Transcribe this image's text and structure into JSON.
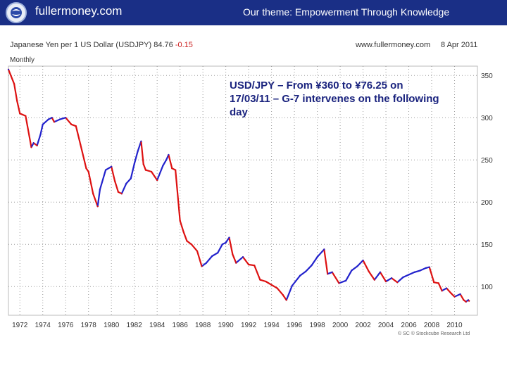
{
  "header": {
    "brand": "fullermoney.com",
    "theme": "Our theme: Empowerment Through Knowledge",
    "logo_icon": "globe-logo-icon",
    "bar_color": "#1a2f86"
  },
  "chart_header": {
    "title_prefix": "Japanese Yen per 1 US Dollar (USDJPY) 84.76",
    "title_change": "-0.15",
    "site": "www.fullermoney.com",
    "date": "8 Apr 2011",
    "frequency": "Monthly"
  },
  "annotation": "USD/JPY – From ¥360 to ¥76.25 on 17/03/11 – G-7 intervenes on the following day",
  "copyright": "© SC © Stockcube Research Ltd",
  "chart_data": {
    "type": "line",
    "series": [
      {
        "x": [
          1971.0,
          1971.5,
          1971.75,
          1972.0,
          1972.5,
          1973.0,
          1973.2,
          1973.5,
          1973.8,
          1974.0,
          1974.5,
          1974.8,
          1975.0,
          1975.5,
          1976.0,
          1976.5,
          1976.9,
          1977.3,
          1977.8,
          1978.0,
          1978.4,
          1978.8,
          1979.0,
          1979.5,
          1980.0,
          1980.3,
          1980.6,
          1980.9,
          1981.3,
          1981.7,
          1982.0,
          1982.3,
          1982.6,
          1982.8,
          1983.0,
          1983.5,
          1984.0,
          1984.5,
          1984.8,
          1985.0,
          1985.3,
          1985.6,
          1986.0,
          1986.3,
          1986.6,
          1987.0,
          1987.5,
          1987.9,
          1988.3,
          1988.8,
          1989.3,
          1989.7,
          1990.0,
          1990.3,
          1990.6,
          1990.9,
          1991.5,
          1992.0,
          1992.5,
          1993.0,
          1993.5,
          1994.0,
          1994.5,
          1995.0,
          1995.3,
          1995.8,
          1996.5,
          1997.0,
          1997.5,
          1998.0,
          1998.6,
          1998.9,
          1999.3,
          1999.9,
          2000.5,
          2001.0,
          2001.5,
          2002.0,
          2002.5,
          2003.0,
          2003.5,
          2004.0,
          2004.5,
          2005.0,
          2005.5,
          2006.0,
          2006.5,
          2007.0,
          2007.5,
          2007.8,
          2008.2,
          2008.6,
          2008.9,
          2009.3,
          2009.7,
          2010.0,
          2010.5,
          2010.8,
          2011.0,
          2011.2,
          2011.27
        ],
        "y": [
          357,
          340,
          320,
          305,
          302,
          265,
          270,
          267,
          280,
          292,
          298,
          300,
          295,
          298,
          300,
          292,
          290,
          268,
          240,
          236,
          210,
          195,
          215,
          238,
          242,
          225,
          212,
          210,
          222,
          228,
          245,
          260,
          272,
          245,
          238,
          236,
          226,
          243,
          250,
          256,
          240,
          238,
          178,
          165,
          154,
          150,
          142,
          124,
          128,
          136,
          140,
          150,
          152,
          158,
          138,
          128,
          135,
          126,
          125,
          108,
          106,
          102,
          98,
          90,
          84,
          101,
          113,
          118,
          125,
          135,
          144,
          115,
          117,
          104,
          107,
          119,
          124,
          131,
          118,
          108,
          117,
          106,
          110,
          105,
          111,
          114,
          117,
          119,
          122,
          123,
          105,
          104,
          95,
          98,
          92,
          88,
          91,
          84,
          82,
          84,
          83
        ]
      }
    ],
    "xlabel": "",
    "ylabel": "",
    "x_ticks": [
      "1972",
      "1974",
      "1976",
      "1978",
      "1980",
      "1982",
      "1984",
      "1986",
      "1988",
      "1990",
      "1992",
      "1994",
      "1996",
      "1998",
      "2000",
      "2002",
      "2004",
      "2006",
      "2008",
      "2010"
    ],
    "y_ticks": [
      100,
      150,
      200,
      250,
      300,
      350
    ],
    "xlim": [
      1971,
      2012
    ],
    "ylim": [
      66,
      361
    ],
    "grid": true,
    "colors": {
      "up": "#2222cc",
      "down": "#dd1111",
      "grid": "#9a9a9a"
    }
  }
}
